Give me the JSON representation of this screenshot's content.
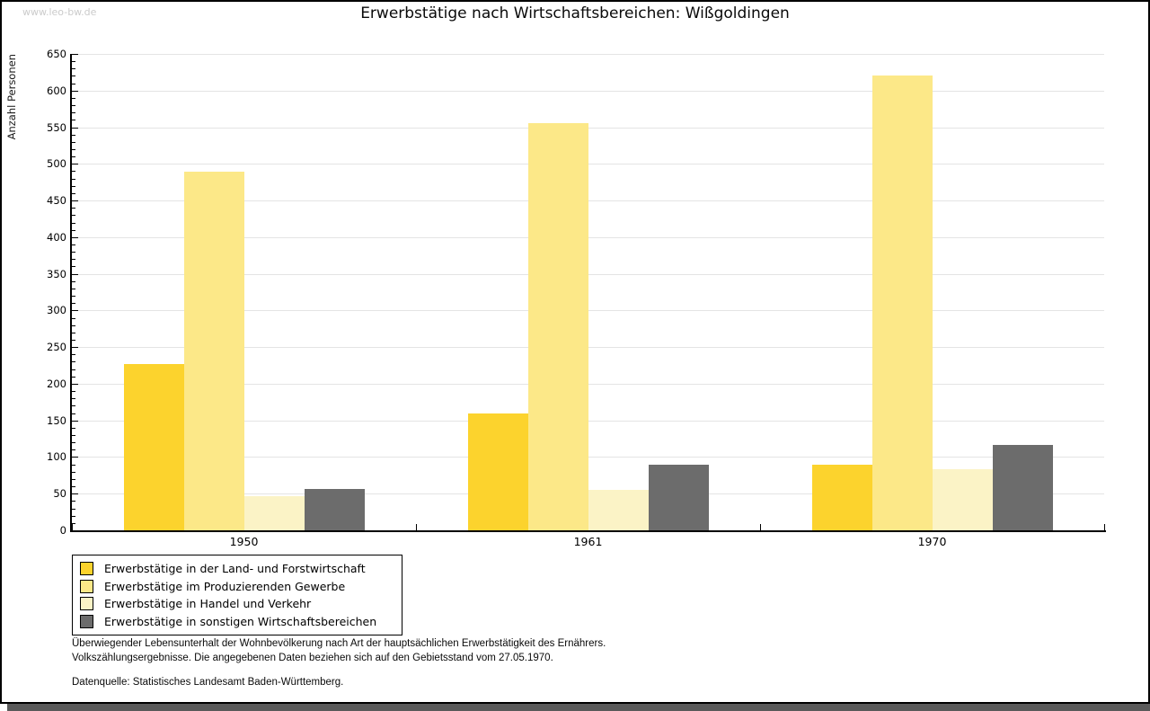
{
  "watermark": "www.leo-bw.de",
  "chart_data": {
    "type": "bar",
    "title": "Erwerbstätige nach Wirtschaftsbereichen: Wißgoldingen",
    "categories": [
      "1950",
      "1961",
      "1970"
    ],
    "series": [
      {
        "name": "Erwerbstätige in der Land- und Forstwirtschaft",
        "color": "#fcd32d",
        "values": [
          227,
          160,
          89
        ]
      },
      {
        "name": "Erwerbstätige im Produzierenden Gewerbe",
        "color": "#fce888",
        "values": [
          489,
          555,
          621
        ]
      },
      {
        "name": "Erwerbstätige in Handel und Verkehr",
        "color": "#fbf3c6",
        "values": [
          47,
          55,
          84
        ]
      },
      {
        "name": "Erwerbstätige in sonstigen Wirtschaftsbereichen",
        "color": "#6c6c6c",
        "values": [
          56,
          90,
          116
        ]
      }
    ],
    "xlabel": "",
    "ylabel": "Anzahl Personen",
    "ylim": [
      0,
      650
    ],
    "ytick_step": 50,
    "yminor_step": 10,
    "grid": true,
    "gridline_color": "#e4e4e4",
    "legend_position": "bottom-left"
  },
  "footer": {
    "line1": "Überwiegender Lebensunterhalt der Wohnbevölkerung nach Art der hauptsächlichen Erwerbstätigkeit des Ernährers.",
    "line2": "Volkszählungsergebnisse. Die angegebenen Daten beziehen sich auf den Gebietsstand vom 27.05.1970.",
    "line3": "Datenquelle: Statistisches Landesamt Baden-Württemberg."
  }
}
